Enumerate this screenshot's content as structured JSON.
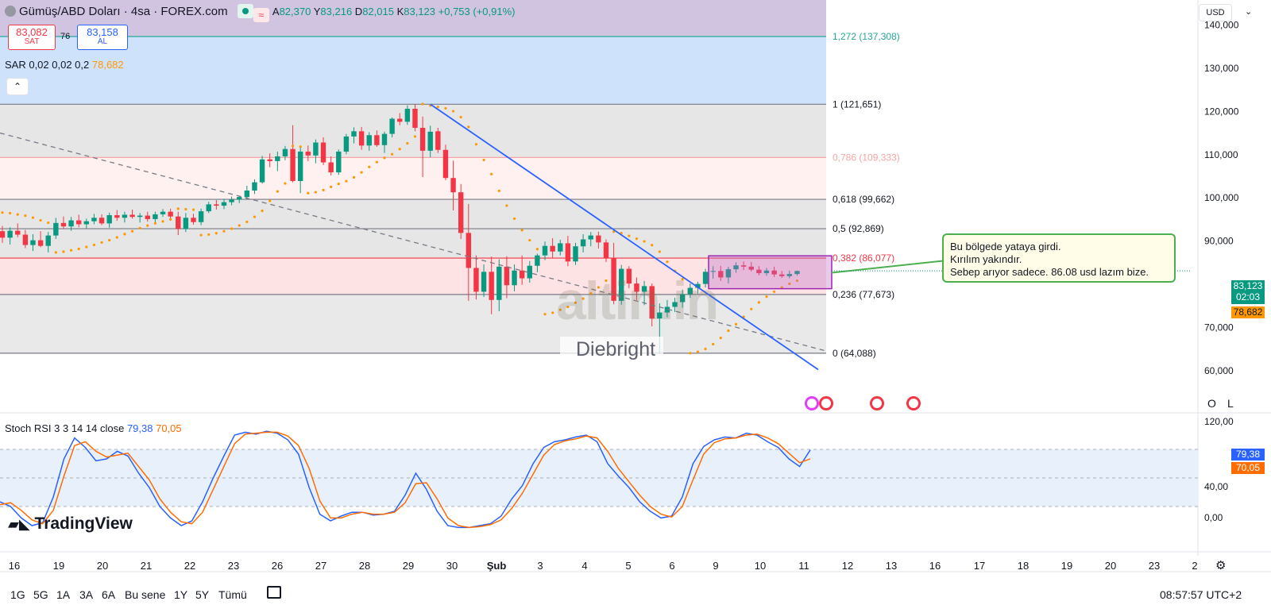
{
  "header": {
    "symbol": "Gümüş/ABD Doları · 4sa · FOREX.com",
    "open_label": "A",
    "open": "82,370",
    "high_label": "Y",
    "high": "83,216",
    "low_label": "D",
    "low": "82,015",
    "close_label": "K",
    "close": "83,123",
    "change": "+0,753 (+0,91%)",
    "sell_price": "83,082",
    "sell_label": "SAT",
    "spread": "76",
    "buy_price": "83,158",
    "buy_label": "AL",
    "sar_label": "SAR 0,02 0,02 0,2",
    "sar_value": "78,682",
    "currency": "USD"
  },
  "annotation": {
    "line1": "Bu bölgede yataya girdi.",
    "line2": "Kırılım yakındır.",
    "line3": "Sebep arıyor sadece. 86.08 usd lazım bize."
  },
  "watermark": {
    "logo": "altin.in",
    "author": "Diebright"
  },
  "price_badges": {
    "last": "83,123",
    "countdown": "02:03",
    "sar": "78,682"
  },
  "rsi": {
    "label": "Stoch RSI 3 3 14 14 close",
    "k": "79,38",
    "d": "70,05",
    "axis": [
      "120,00",
      "40,00",
      "0,00"
    ]
  },
  "branding": "TradingView",
  "bottom_toolbar": [
    "1G",
    "5G",
    "1A",
    "3A",
    "6A",
    "Bu sene",
    "1Y",
    "5Y",
    "Tümü"
  ],
  "clock": "08:57:57 UTC+2",
  "side_buttons": {
    "o": "O",
    "l": "L"
  },
  "colors": {
    "up": "#089981",
    "down": "#f23645",
    "sar": "#ff9800",
    "trend": "#2962ff",
    "k_line": "#2962ff",
    "d_line": "#ff6d00",
    "accent_green": "#089981"
  },
  "chart_data": {
    "type": "candlestick",
    "instrument": "Gümüş/ABD Doları",
    "timeframe": "4sa",
    "x_labels": [
      "16",
      "19",
      "20",
      "21",
      "22",
      "23",
      "26",
      "27",
      "28",
      "29",
      "30",
      "Şub",
      "3",
      "4",
      "5",
      "6",
      "9",
      "10",
      "11",
      "12",
      "13",
      "16",
      "17",
      "18",
      "19",
      "20",
      "23",
      "2"
    ],
    "y_ticks": [
      "140,000",
      "130,000",
      "120,000",
      "110,000",
      "100,000",
      "90,000",
      "70,000",
      "60,000"
    ],
    "ylim": [
      60,
      142
    ],
    "fibonacci": [
      {
        "level": "1,272",
        "price": "137,308"
      },
      {
        "level": "1",
        "price": "121,651"
      },
      {
        "level": "0,786",
        "price": "109,333"
      },
      {
        "level": "0,618",
        "price": "99,662"
      },
      {
        "level": "0,5",
        "price": "92,869"
      },
      {
        "level": "0,382",
        "price": "86,077"
      },
      {
        "level": "0,236",
        "price": "77,673"
      },
      {
        "level": "0",
        "price": "64,088"
      }
    ],
    "candles": [
      [
        92.3,
        93.5,
        89.6,
        90.8
      ],
      [
        90.8,
        93.2,
        89.2,
        92.4
      ],
      [
        92.4,
        94.1,
        90.9,
        91.5
      ],
      [
        91.5,
        92.6,
        88.4,
        89.1
      ],
      [
        89.1,
        91.6,
        87.7,
        90.2
      ],
      [
        90.2,
        92.3,
        88.6,
        88.9
      ],
      [
        88.9,
        92.1,
        87.4,
        91.3
      ],
      [
        91.3,
        95.4,
        90.5,
        94.2
      ],
      [
        94.2,
        95.7,
        92.8,
        93.4
      ],
      [
        93.4,
        95.6,
        92.4,
        94.8
      ],
      [
        94.8,
        96.1,
        93.2,
        93.9
      ],
      [
        93.9,
        95.2,
        92.9,
        94.6
      ],
      [
        94.6,
        96.3,
        93.9,
        95.4
      ],
      [
        95.4,
        96.2,
        93.7,
        94.1
      ],
      [
        94.1,
        96.6,
        93.1,
        96.0
      ],
      [
        96.0,
        97.2,
        94.7,
        95.4
      ],
      [
        95.4,
        96.8,
        94.3,
        96.1
      ],
      [
        96.1,
        97.3,
        95.2,
        95.6
      ],
      [
        95.6,
        96.5,
        94.3,
        95.9
      ],
      [
        95.9,
        96.8,
        94.5,
        95.1
      ],
      [
        95.1,
        96.8,
        94.2,
        96.2
      ],
      [
        96.2,
        97.4,
        95.6,
        96.8
      ],
      [
        96.8,
        97.5,
        95.1,
        95.7
      ],
      [
        95.7,
        96.8,
        91.4,
        92.8
      ],
      [
        92.8,
        96.5,
        92.1,
        95.4
      ],
      [
        95.4,
        96.3,
        93.8,
        94.4
      ],
      [
        94.4,
        97.5,
        93.7,
        96.9
      ],
      [
        96.9,
        99.1,
        96.5,
        98.5
      ],
      [
        98.5,
        99.5,
        97.3,
        98.2
      ],
      [
        98.2,
        99.8,
        97.4,
        99.0
      ],
      [
        99.0,
        100.3,
        98.3,
        99.6
      ],
      [
        99.6,
        100.5,
        98.8,
        100.2
      ],
      [
        100.2,
        102.8,
        99.6,
        101.7
      ],
      [
        101.7,
        104.3,
        100.9,
        103.6
      ],
      [
        103.6,
        109.7,
        103.3,
        108.9
      ],
      [
        108.9,
        110.3,
        107.1,
        108.5
      ],
      [
        108.5,
        110.7,
        106.2,
        109.6
      ],
      [
        109.6,
        112.0,
        108.7,
        111.3
      ],
      [
        111.3,
        116.8,
        103.6,
        103.9
      ],
      [
        103.9,
        111.6,
        101.1,
        110.7
      ],
      [
        110.7,
        112.1,
        108.5,
        109.8
      ],
      [
        109.8,
        113.5,
        108.0,
        112.8
      ],
      [
        112.8,
        114.0,
        107.6,
        108.2
      ],
      [
        108.2,
        109.6,
        105.2,
        105.9
      ],
      [
        105.9,
        111.2,
        105.3,
        110.7
      ],
      [
        110.7,
        114.8,
        110.1,
        114.2
      ],
      [
        114.2,
        116.3,
        112.6,
        115.4
      ],
      [
        115.4,
        116.4,
        111.1,
        112.1
      ],
      [
        112.1,
        115.2,
        110.9,
        114.5
      ],
      [
        114.5,
        115.6,
        111.8,
        112.2
      ],
      [
        112.2,
        115.3,
        110.4,
        114.8
      ],
      [
        114.8,
        118.6,
        114.0,
        118.3
      ],
      [
        118.3,
        119.6,
        116.8,
        117.6
      ],
      [
        117.6,
        121.4,
        116.9,
        120.6
      ],
      [
        120.6,
        121.7,
        115.4,
        116.2
      ],
      [
        116.2,
        118.8,
        104.8,
        110.9
      ],
      [
        110.9,
        116.7,
        109.4,
        115.3
      ],
      [
        115.4,
        116.2,
        110.4,
        111.1
      ],
      [
        111.1,
        112.3,
        104.1,
        104.6
      ],
      [
        104.6,
        108.6,
        97.1,
        101.3
      ],
      [
        101.3,
        103.2,
        90.5,
        91.9
      ],
      [
        91.9,
        98.6,
        76.2,
        83.8
      ],
      [
        83.8,
        86.7,
        76.5,
        78.3
      ],
      [
        78.3,
        84.6,
        77.1,
        82.9
      ],
      [
        82.9,
        86.4,
        73.1,
        76.4
      ],
      [
        76.4,
        85.8,
        73.8,
        84.1
      ],
      [
        84.1,
        86.5,
        76.8,
        79.8
      ],
      [
        79.8,
        84.6,
        78.4,
        83.2
      ],
      [
        83.2,
        86.7,
        79.9,
        81.4
      ],
      [
        81.4,
        85.4,
        80.4,
        84.3
      ],
      [
        84.3,
        87.1,
        82.8,
        86.7
      ],
      [
        86.7,
        89.9,
        85.6,
        88.9
      ],
      [
        88.9,
        90.7,
        86.1,
        87.6
      ],
      [
        87.6,
        90.3,
        86.7,
        89.5
      ],
      [
        89.5,
        91.2,
        84.2,
        85.3
      ],
      [
        85.3,
        89.6,
        84.5,
        88.8
      ],
      [
        88.8,
        91.6,
        87.4,
        90.4
      ],
      [
        90.4,
        92.1,
        88.8,
        91.3
      ],
      [
        91.3,
        92.2,
        88.3,
        89.7
      ],
      [
        89.7,
        90.4,
        85.2,
        86.1
      ],
      [
        86.1,
        89.6,
        75.4,
        76.2
      ],
      [
        76.2,
        84.5,
        75.3,
        83.6
      ],
      [
        83.6,
        84.2,
        79.1,
        80.2
      ],
      [
        80.2,
        81.6,
        76.4,
        78.3
      ],
      [
        78.3,
        80.8,
        75.2,
        79.6
      ],
      [
        79.6,
        80.2,
        70.3,
        72.1
      ],
      [
        72.1,
        75.6,
        64.1,
        73.5
      ],
      [
        73.5,
        76.4,
        72.4,
        74.8
      ],
      [
        74.8,
        76.9,
        73.6,
        75.9
      ],
      [
        75.9,
        78.8,
        74.6,
        77.7
      ],
      [
        77.7,
        80.2,
        76.9,
        79.2
      ],
      [
        79.2,
        80.6,
        77.8,
        80.1
      ],
      [
        80.1,
        83.6,
        79.3,
        82.9
      ],
      [
        82.9,
        84.2,
        81.3,
        83.1
      ],
      [
        83.1,
        84.3,
        80.8,
        81.6
      ],
      [
        81.6,
        84.1,
        80.2,
        83.5
      ],
      [
        83.5,
        85.1,
        82.7,
        84.4
      ],
      [
        84.4,
        85.3,
        83.3,
        84.1
      ],
      [
        84.1,
        85.2,
        83.0,
        83.4
      ],
      [
        83.4,
        84.2,
        82.1,
        82.6
      ],
      [
        82.6,
        83.8,
        82.0,
        83.2
      ],
      [
        83.2,
        84.1,
        81.7,
        82.3
      ],
      [
        82.3,
        83.1,
        81.5,
        81.9
      ],
      [
        81.9,
        83.2,
        81.4,
        82.4
      ],
      [
        82.4,
        83.2,
        82.0,
        83.1
      ]
    ],
    "parabolic_sar_value": "78,682",
    "stoch_rsi": {
      "k_last": "79,38",
      "d_last": "70,05",
      "upper_band": 80,
      "lower_band": 20
    }
  }
}
